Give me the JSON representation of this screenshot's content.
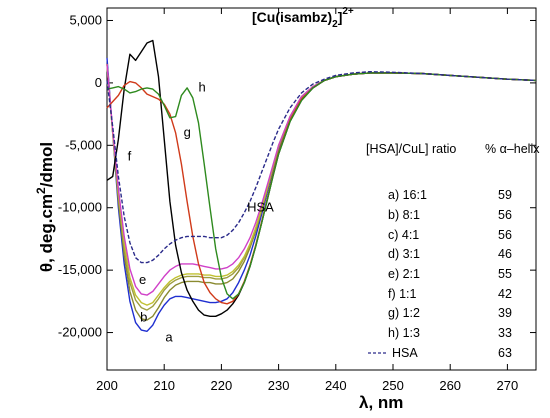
{
  "chart_data": {
    "type": "line",
    "title": "[Cu(isambz)",
    "title_sub": "2",
    "title_sup": "2+",
    "xlabel": "λ, nm",
    "ylabel_main": "θ, deg.cm",
    "ylabel_sup": "2",
    "ylabel_end": "/dmol",
    "xlim": [
      200,
      275
    ],
    "ylim": [
      -23000,
      6000
    ],
    "x_ticks": [
      200,
      210,
      220,
      230,
      240,
      250,
      260,
      270
    ],
    "y_ticks": [
      5000,
      0,
      -5000,
      -10000,
      -15000,
      -20000
    ],
    "y_tick_labels": [
      "5,000",
      "0",
      "-5,000",
      "-10,000",
      "-15,000",
      "-20,000"
    ],
    "grid": false,
    "legend": {
      "header_col1": "[HSA]/CuL] ratio",
      "header_col2": "% α–helix",
      "entries": [
        {
          "ratio": "a) 16:1",
          "helix": "59"
        },
        {
          "ratio": "b)  8:1",
          "helix": "56"
        },
        {
          "ratio": "c)  4:1",
          "helix": "56"
        },
        {
          "ratio": "d) 3:1",
          "helix": "46"
        },
        {
          "ratio": "e)  2:1",
          "helix": "55"
        },
        {
          "ratio": "f)   1:1",
          "helix": "42"
        },
        {
          "ratio": "g)  1:2",
          "helix": "39"
        },
        {
          "ratio": "h)  1:3",
          "helix": "33"
        },
        {
          "ratio": "HSA",
          "helix": "63"
        }
      ]
    },
    "series": [
      {
        "label": "a",
        "color": "#1f2fd0",
        "dashed": false,
        "x": [
          200,
          201,
          202,
          203,
          204,
          205,
          206,
          207,
          208,
          209,
          210,
          211,
          212,
          213,
          214,
          215,
          216,
          217,
          218,
          219,
          220,
          221,
          222,
          223,
          224,
          225,
          226,
          227,
          228,
          229,
          230,
          232,
          234,
          236,
          238,
          240,
          243,
          246,
          250,
          255,
          260,
          265,
          270,
          275
        ],
        "y": [
          2000,
          -4000,
          -10000,
          -14500,
          -17500,
          -19200,
          -19800,
          -19900,
          -19400,
          -18500,
          -17800,
          -17300,
          -17100,
          -17100,
          -17200,
          -17300,
          -17400,
          -17500,
          -17600,
          -17600,
          -17500,
          -17300,
          -16800,
          -16000,
          -15000,
          -13800,
          -12300,
          -10600,
          -8800,
          -7000,
          -5300,
          -2900,
          -1300,
          -400,
          200,
          500,
          700,
          800,
          800,
          750,
          600,
          450,
          300,
          200
        ]
      },
      {
        "label": "b",
        "color": "#8a8a30",
        "dashed": false,
        "x": [
          200,
          201,
          202,
          203,
          204,
          205,
          206,
          207,
          208,
          209,
          210,
          211,
          212,
          213,
          214,
          215,
          216,
          217,
          218,
          219,
          220,
          221,
          222,
          223,
          224,
          225,
          226,
          227,
          228,
          229,
          230,
          232,
          234,
          236,
          238,
          240,
          243,
          246,
          250,
          255,
          260,
          265,
          270,
          275
        ],
        "y": [
          1500,
          -4000,
          -9500,
          -13800,
          -16700,
          -18200,
          -18900,
          -19000,
          -18700,
          -18000,
          -17200,
          -16600,
          -16200,
          -16000,
          -15900,
          -15900,
          -15900,
          -16000,
          -16000,
          -16100,
          -16100,
          -16000,
          -15700,
          -15100,
          -14300,
          -13200,
          -11900,
          -10300,
          -8600,
          -6900,
          -5200,
          -2800,
          -1200,
          -300,
          200,
          500,
          700,
          800,
          800,
          750,
          600,
          450,
          300,
          200
        ]
      },
      {
        "label": "c",
        "color": "#9e9e40",
        "dashed": false,
        "x": [
          200,
          201,
          202,
          203,
          204,
          205,
          206,
          207,
          208,
          209,
          210,
          211,
          212,
          213,
          214,
          215,
          216,
          217,
          218,
          219,
          220,
          221,
          222,
          223,
          224,
          225,
          226,
          227,
          228,
          229,
          230,
          232,
          234,
          236,
          238,
          240,
          243,
          246,
          250,
          255,
          260,
          265,
          270,
          275
        ],
        "y": [
          1500,
          -4000,
          -9000,
          -13200,
          -16000,
          -17400,
          -18000,
          -18200,
          -17900,
          -17300,
          -16600,
          -16100,
          -15800,
          -15600,
          -15500,
          -15500,
          -15500,
          -15600,
          -15600,
          -15700,
          -15700,
          -15600,
          -15300,
          -14800,
          -14000,
          -13000,
          -11700,
          -10200,
          -8500,
          -6800,
          -5100,
          -2700,
          -1100,
          -300,
          200,
          500,
          700,
          800,
          800,
          750,
          600,
          450,
          300,
          200
        ]
      },
      {
        "label": "d",
        "color": "#c0c030",
        "dashed": false,
        "x": [
          200,
          201,
          202,
          203,
          204,
          205,
          206,
          207,
          208,
          209,
          210,
          211,
          212,
          213,
          214,
          215,
          216,
          217,
          218,
          219,
          220,
          221,
          222,
          223,
          224,
          225,
          226,
          227,
          228,
          229,
          230,
          232,
          234,
          236,
          238,
          240,
          243,
          246,
          250,
          255,
          260,
          265,
          270,
          275
        ],
        "y": [
          1500,
          -4000,
          -8800,
          -12800,
          -15600,
          -17000,
          -17600,
          -17800,
          -17600,
          -17000,
          -16400,
          -15900,
          -15600,
          -15400,
          -15300,
          -15300,
          -15300,
          -15400,
          -15400,
          -15500,
          -15500,
          -15400,
          -15100,
          -14600,
          -13900,
          -12900,
          -11600,
          -10100,
          -8400,
          -6700,
          -5000,
          -2700,
          -1100,
          -300,
          200,
          500,
          700,
          800,
          800,
          750,
          600,
          450,
          300,
          200
        ]
      },
      {
        "label": "e",
        "color": "#d040c8",
        "dashed": false,
        "x": [
          200,
          201,
          202,
          203,
          204,
          205,
          206,
          207,
          208,
          209,
          210,
          211,
          212,
          213,
          214,
          215,
          216,
          217,
          218,
          219,
          220,
          221,
          222,
          223,
          224,
          225,
          226,
          227,
          228,
          229,
          230,
          232,
          234,
          236,
          238,
          240,
          243,
          246,
          250,
          255,
          260,
          265,
          270,
          275
        ],
        "y": [
          1500,
          -3800,
          -8500,
          -12300,
          -14900,
          -16300,
          -16900,
          -17000,
          -16700,
          -16100,
          -15500,
          -15000,
          -14700,
          -14500,
          -14500,
          -14500,
          -14600,
          -14700,
          -14800,
          -14900,
          -14900,
          -14800,
          -14500,
          -14000,
          -13300,
          -12400,
          -11200,
          -9800,
          -8200,
          -6600,
          -5000,
          -2700,
          -1100,
          -300,
          200,
          500,
          700,
          800,
          800,
          750,
          600,
          450,
          300,
          200
        ]
      },
      {
        "label": "f",
        "color": "#000000",
        "dashed": false,
        "x": [
          200,
          201,
          202,
          203,
          204,
          205,
          206,
          207,
          208,
          209,
          210,
          211,
          212,
          213,
          214,
          215,
          216,
          217,
          218,
          219,
          220,
          221,
          222,
          223,
          224,
          225,
          226,
          227,
          228,
          229,
          230,
          232,
          234,
          236,
          238,
          240,
          243,
          246,
          250,
          255,
          260,
          265,
          270,
          275
        ],
        "y": [
          -7800,
          -7500,
          -4500,
          -500,
          2300,
          1800,
          2500,
          3200,
          3400,
          500,
          -4500,
          -9500,
          -13000,
          -15200,
          -16600,
          -17500,
          -18200,
          -18600,
          -18700,
          -18700,
          -18500,
          -18200,
          -17700,
          -17000,
          -16000,
          -14700,
          -13100,
          -11300,
          -9400,
          -7500,
          -5700,
          -3100,
          -1400,
          -400,
          200,
          500,
          700,
          800,
          800,
          750,
          600,
          450,
          300,
          200
        ]
      },
      {
        "label": "g",
        "color": "#d03a1a",
        "dashed": false,
        "x": [
          200,
          201,
          202,
          203,
          204,
          205,
          206,
          207,
          208,
          209,
          210,
          211,
          212,
          213,
          214,
          215,
          216,
          217,
          218,
          219,
          220,
          221,
          222,
          223,
          224,
          225,
          226,
          227,
          228,
          229,
          230,
          232,
          234,
          236,
          238,
          240,
          243,
          246,
          250,
          255,
          260,
          265,
          270,
          275
        ],
        "y": [
          -2000,
          -1500,
          -1000,
          -200,
          100,
          0,
          -400,
          -900,
          -1100,
          -1300,
          -1700,
          -2500,
          -4000,
          -6500,
          -9500,
          -12300,
          -14500,
          -16000,
          -16800,
          -17300,
          -17600,
          -17700,
          -17500,
          -16900,
          -15900,
          -14600,
          -13000,
          -11200,
          -9300,
          -7400,
          -5600,
          -3000,
          -1300,
          -400,
          200,
          500,
          700,
          800,
          800,
          750,
          600,
          450,
          300,
          200
        ]
      },
      {
        "label": "h",
        "color": "#2e8a1e",
        "dashed": false,
        "x": [
          200,
          201,
          202,
          203,
          204,
          205,
          206,
          207,
          208,
          209,
          210,
          211,
          212,
          213,
          214,
          215,
          216,
          217,
          218,
          219,
          220,
          221,
          222,
          223,
          224,
          225,
          226,
          227,
          228,
          229,
          230,
          232,
          234,
          236,
          238,
          240,
          243,
          246,
          250,
          255,
          260,
          265,
          270,
          275
        ],
        "y": [
          -500,
          -400,
          -300,
          -500,
          -800,
          -700,
          -500,
          -400,
          -500,
          -900,
          -1800,
          -2800,
          -2700,
          -1000,
          -400,
          -1200,
          -3200,
          -6500,
          -10000,
          -13300,
          -15600,
          -16900,
          -17300,
          -16900,
          -16000,
          -14700,
          -13100,
          -11300,
          -9400,
          -7500,
          -5700,
          -3100,
          -1400,
          -400,
          200,
          500,
          700,
          800,
          800,
          750,
          600,
          450,
          300,
          200
        ]
      },
      {
        "label": "HSA",
        "color": "#2a2a8a",
        "dashed": true,
        "x": [
          200,
          201,
          202,
          203,
          204,
          205,
          206,
          207,
          208,
          209,
          210,
          211,
          212,
          213,
          214,
          215,
          216,
          217,
          218,
          219,
          220,
          221,
          222,
          223,
          224,
          225,
          226,
          227,
          228,
          229,
          230,
          232,
          234,
          236,
          238,
          240,
          243,
          246,
          250,
          255,
          260,
          265,
          270,
          275
        ],
        "y": [
          200,
          -3500,
          -7500,
          -10700,
          -12800,
          -14000,
          -14400,
          -14400,
          -14200,
          -13800,
          -13300,
          -12900,
          -12600,
          -12400,
          -12300,
          -12300,
          -12300,
          -12300,
          -12400,
          -12400,
          -12400,
          -12200,
          -11800,
          -11200,
          -10400,
          -9500,
          -8400,
          -7200,
          -6000,
          -4800,
          -3700,
          -2000,
          -800,
          -100,
          300,
          600,
          800,
          900,
          850,
          750,
          600,
          450,
          300,
          200
        ]
      }
    ],
    "annotations": [
      {
        "text": "a",
        "x": 210.2,
        "y": -20700
      },
      {
        "text": "b",
        "x": 205.8,
        "y": -19100
      },
      {
        "text": "e",
        "x": 205.6,
        "y": -16100
      },
      {
        "text": "f",
        "x": 203.6,
        "y": -6200
      },
      {
        "text": "g",
        "x": 213.4,
        "y": -4300
      },
      {
        "text": "h",
        "x": 216.0,
        "y": -700
      },
      {
        "text": "HSA",
        "x": 224.5,
        "y": -10300
      }
    ]
  }
}
